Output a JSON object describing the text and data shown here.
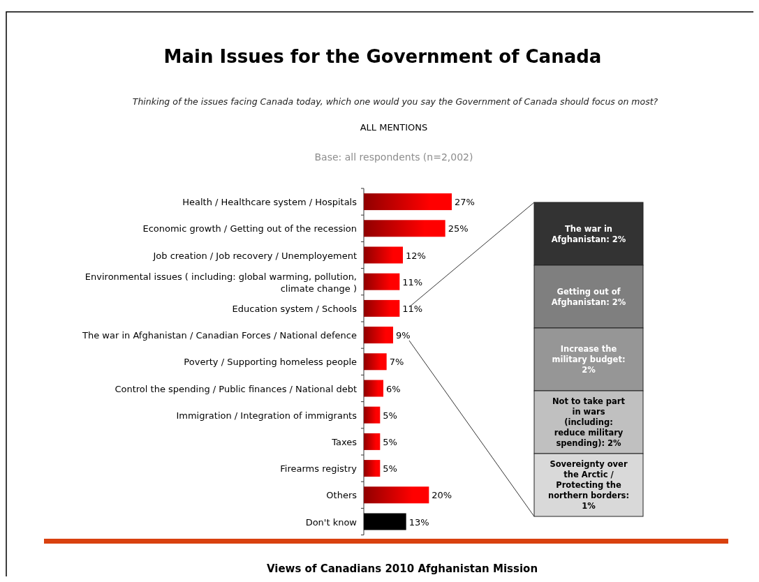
{
  "chart_data": [
    {
      "type": "bar",
      "orientation": "horizontal",
      "title": "Main Issues for the Government of Canada",
      "subtitle": "Thinking of the issues facing Canada today, which one would you say the Government of Canada should focus on most?",
      "annotations": [
        "ALL MENTIONS",
        "Base: all respondents (n=2,002)",
        "Views of Canadians 2010 Afghanistan Mission"
      ],
      "categories": [
        "Health / Healthcare system / Hospitals",
        "Economic growth / Getting out of the recession",
        "Job creation / Job recovery / Unemployement",
        "Environmental issues ( including: global warming, pollution, climate change )",
        "Education system / Schools",
        "The war in Afghanistan / Canadian Forces / National defence",
        "Poverty / Supporting homeless people",
        "Control the spending / Public finances / National debt",
        "Immigration / Integration of immigrants",
        "Taxes",
        "Firearms registry",
        "Others",
        "Don't know"
      ],
      "values": [
        27,
        25,
        12,
        11,
        11,
        9,
        7,
        6,
        5,
        5,
        5,
        20,
        13
      ],
      "colors": [
        "#ff0000",
        "#ff0000",
        "#ff0000",
        "#ff0000",
        "#ff0000",
        "#ff0000",
        "#ff0000",
        "#ff0000",
        "#ff0000",
        "#ff0000",
        "#ff0000",
        "#ff0000",
        "#000000"
      ],
      "value_labels": [
        "27%",
        "25%",
        "12%",
        "11%",
        "11%",
        "9%",
        "7%",
        "6%",
        "5%",
        "5%",
        "5%",
        "20%",
        "13%"
      ]
    },
    {
      "type": "other",
      "annotations": [
        "The war in Afghanistan: 2%",
        "Getting out of Afghanistan: 2%",
        "Increase the military budget: 2%",
        "Not to take part in wars (including: reduce military spending): 2%",
        "Sovereignty over the Arctic / Protecting the northern borders: 1%"
      ],
      "colors": [
        "#333333",
        "#7f7f7f",
        "#969696",
        "#c0c0c0",
        "#d9d9d9"
      ]
    }
  ]
}
